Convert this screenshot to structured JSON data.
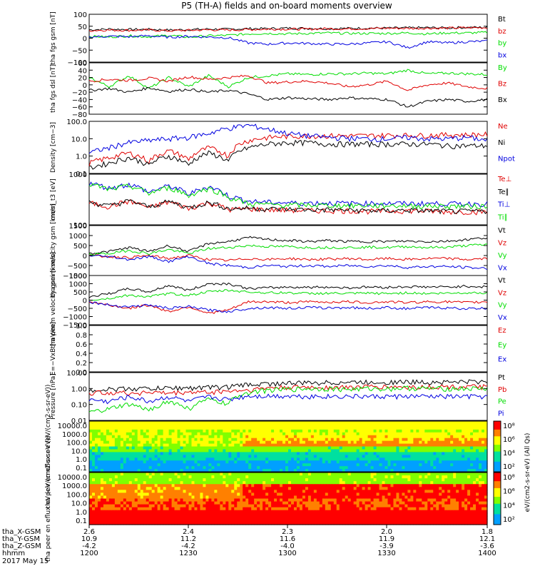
{
  "title": "P5 (TH-A) fields and on-board moments overview",
  "colors": {
    "black": "#000000",
    "red": "#e00000",
    "green": "#00dd00",
    "blue": "#0000e0",
    "axis": "#000000"
  },
  "xaxis": {
    "rows": [
      {
        "label": "tha_X-GSM",
        "values": [
          "2.6",
          "2.4",
          "2.3",
          "2.0",
          "1.8"
        ]
      },
      {
        "label": "tha_Y-GSM",
        "values": [
          "10.9",
          "11.2",
          "11.6",
          "11.9",
          "12.1"
        ]
      },
      {
        "label": "tha_Z-GSM",
        "values": [
          "-4.2",
          "-4.2",
          "-4.0",
          "-3.9",
          "-3.6"
        ]
      },
      {
        "label": "hhmm",
        "values": [
          "1200",
          "1230",
          "1300",
          "1330",
          "1400"
        ]
      }
    ],
    "date": "2017 May 15"
  },
  "chart_data": [
    {
      "type": "line",
      "id": "fgs_gsm",
      "ylabel": "tha fgs gsm [nT]",
      "ylim": [
        -100,
        100
      ],
      "yticks": [
        "100",
        "50",
        "0",
        "−50",
        "−100"
      ],
      "series": [
        {
          "name": "Bt",
          "color": "#000000",
          "values": [
            35,
            38,
            36,
            37,
            34,
            36,
            38,
            37,
            40,
            40,
            42,
            41,
            40,
            41,
            42,
            42,
            43,
            44,
            43,
            45,
            45
          ]
        },
        {
          "name": "bz",
          "color": "#e00000",
          "values": [
            32,
            34,
            33,
            34,
            31,
            33,
            35,
            34,
            36,
            38,
            38,
            38,
            40,
            39,
            40,
            42,
            41,
            42,
            42,
            44,
            44
          ]
        },
        {
          "name": "by",
          "color": "#00dd00",
          "values": [
            8,
            5,
            10,
            6,
            12,
            4,
            10,
            12,
            18,
            20,
            18,
            20,
            22,
            20,
            20,
            20,
            22,
            18,
            22,
            22,
            24
          ]
        },
        {
          "name": "bx",
          "color": "#0000e0",
          "values": [
            5,
            8,
            6,
            10,
            4,
            8,
            5,
            2,
            -20,
            -25,
            -20,
            -22,
            -25,
            -25,
            -20,
            -15,
            -40,
            -15,
            -20,
            -15,
            -12
          ]
        }
      ]
    },
    {
      "type": "line",
      "id": "fgs_dsl",
      "ylabel": "tha fgs dsl [nT]",
      "ylim": [
        -80,
        60
      ],
      "yticks": [
        "60",
        "40",
        "20",
        "0",
        "−20",
        "−40",
        "−60",
        "−80"
      ],
      "series": [
        {
          "name": "By",
          "color": "#00dd00",
          "values": [
            20,
            -5,
            25,
            -10,
            20,
            -5,
            25,
            -5,
            20,
            25,
            30,
            28,
            30,
            30,
            32,
            30,
            40,
            30,
            32,
            30,
            28
          ]
        },
        {
          "name": "Bz",
          "color": "#e00000",
          "values": [
            10,
            15,
            12,
            18,
            10,
            22,
            15,
            20,
            25,
            5,
            8,
            10,
            5,
            -5,
            0,
            10,
            -15,
            0,
            5,
            -5,
            -10
          ]
        },
        {
          "name": "Bx",
          "color": "#000000",
          "values": [
            -15,
            -10,
            -20,
            -8,
            -18,
            -12,
            -20,
            -15,
            -25,
            -40,
            -35,
            -38,
            -40,
            -35,
            -38,
            -40,
            -60,
            -45,
            -40,
            -45,
            -40
          ]
        }
      ]
    },
    {
      "type": "line",
      "id": "density",
      "ylabel": "Density [cm−3]",
      "log": true,
      "ylim": [
        0.1,
        100
      ],
      "yticks": [
        "100.0",
        "10.0",
        "1.0",
        "0.1"
      ],
      "series": [
        {
          "name": "Ne",
          "color": "#e00000",
          "values": [
            0.4,
            0.8,
            1.5,
            0.5,
            2,
            0.6,
            3,
            1,
            8,
            12,
            14,
            15,
            15,
            15,
            15,
            16,
            16,
            16,
            17,
            17,
            18
          ]
        },
        {
          "name": "Ni",
          "color": "#000000",
          "values": [
            0.2,
            0.4,
            0.8,
            0.3,
            1,
            0.3,
            1.5,
            0.5,
            3,
            5,
            6,
            6,
            5,
            5,
            5,
            5,
            5,
            5,
            4,
            4,
            4
          ]
        },
        {
          "name": "Npot",
          "color": "#0000e0",
          "values": [
            1.5,
            3,
            6,
            8,
            10,
            12,
            20,
            40,
            60,
            35,
            20,
            15,
            12,
            11,
            10,
            10,
            12,
            10,
            10,
            12,
            8
          ]
        }
      ]
    },
    {
      "type": "line",
      "id": "temperature",
      "ylabel": "mom_t3 [eV]",
      "log": true,
      "ylim": [
        10,
        10000
      ],
      "yticks": [
        "1000",
        "100"
      ],
      "series": [
        {
          "name": "Te⊥",
          "color": "#e00000",
          "values": [
            200,
            120,
            250,
            100,
            220,
            90,
            200,
            80,
            90,
            80,
            75,
            70,
            70,
            70,
            65,
            65,
            70,
            65,
            60,
            60,
            60
          ]
        },
        {
          "name": "Te∥",
          "color": "#000000",
          "values": [
            220,
            130,
            260,
            110,
            240,
            100,
            210,
            90,
            100,
            90,
            85,
            80,
            80,
            75,
            70,
            70,
            75,
            70,
            65,
            65,
            65
          ]
        },
        {
          "name": "Ti⊥",
          "color": "#0000e0",
          "values": [
            3000,
            1500,
            2500,
            800,
            2000,
            600,
            1800,
            500,
            250,
            220,
            200,
            200,
            200,
            190,
            190,
            190,
            185,
            185,
            180,
            180,
            180
          ]
        },
        {
          "name": "Ti∥",
          "color": "#00dd00",
          "values": [
            2500,
            1200,
            2000,
            700,
            1600,
            500,
            1400,
            400,
            180,
            160,
            150,
            150,
            145,
            140,
            140,
            140,
            135,
            135,
            130,
            130,
            130
          ]
        }
      ]
    },
    {
      "type": "line",
      "id": "peim_velocity",
      "ylabel": "tha peim velocity gsm [km/s]",
      "ylim": [
        -1000,
        1500
      ],
      "yticks": [
        "1500",
        "1000",
        "500",
        "0",
        "−500",
        "−1000"
      ],
      "series": [
        {
          "name": "Vt",
          "color": "#000000",
          "values": [
            100,
            200,
            400,
            200,
            500,
            200,
            600,
            700,
            900,
            800,
            750,
            700,
            750,
            700,
            700,
            700,
            720,
            700,
            720,
            800,
            900
          ]
        },
        {
          "name": "Vz",
          "color": "#e00000",
          "values": [
            0,
            -50,
            -100,
            0,
            -150,
            0,
            -200,
            -250,
            -150,
            -200,
            -150,
            -200,
            -180,
            -150,
            -200,
            -150,
            -200,
            -150,
            -150,
            -200,
            -150
          ]
        },
        {
          "name": "Vy",
          "color": "#00dd00",
          "values": [
            50,
            100,
            250,
            100,
            300,
            100,
            350,
            400,
            500,
            450,
            450,
            400,
            400,
            400,
            420,
            400,
            450,
            400,
            420,
            500,
            550
          ]
        },
        {
          "name": "Vx",
          "color": "#0000e0",
          "values": [
            0,
            -50,
            -200,
            -50,
            -300,
            -50,
            -400,
            -500,
            -600,
            -500,
            -550,
            -500,
            -550,
            -500,
            -550,
            -500,
            -600,
            -550,
            -550,
            -600,
            -650
          ]
        }
      ]
    },
    {
      "type": "line",
      "id": "peem_velocity",
      "ylabel": "tha peem velocity gsm [km/s]",
      "ylim": [
        -1500,
        1500
      ],
      "yticks": [
        "1500",
        "1000",
        "500",
        "0",
        "−500",
        "−1000",
        "−1500"
      ],
      "series": [
        {
          "name": "Vt",
          "color": "#000000",
          "values": [
            200,
            400,
            700,
            500,
            900,
            600,
            1000,
            1000,
            700,
            750,
            800,
            780,
            800,
            750,
            800,
            780,
            820,
            800,
            800,
            850,
            800
          ]
        },
        {
          "name": "Vz",
          "color": "#e00000",
          "values": [
            -100,
            -300,
            -500,
            -300,
            -700,
            -400,
            -800,
            -600,
            -100,
            -100,
            -150,
            -100,
            -120,
            -100,
            -150,
            -100,
            -150,
            -100,
            -100,
            -150,
            -100
          ]
        },
        {
          "name": "Vy",
          "color": "#00dd00",
          "values": [
            0,
            100,
            300,
            200,
            400,
            300,
            500,
            600,
            500,
            450,
            450,
            400,
            420,
            400,
            420,
            400,
            450,
            400,
            420,
            450,
            450
          ]
        },
        {
          "name": "Vx",
          "color": "#0000e0",
          "values": [
            -100,
            -300,
            -400,
            -300,
            -500,
            -400,
            -600,
            -700,
            -500,
            -450,
            -500,
            -450,
            -480,
            -450,
            -500,
            -450,
            -520,
            -450,
            -480,
            -520,
            -500
          ]
        }
      ]
    },
    {
      "type": "line",
      "id": "efield",
      "ylabel": "E=−VxB [mV/m]",
      "ylim": [
        0,
        1
      ],
      "yticks": [
        "1.0",
        "0.8",
        "0.6",
        "0.4",
        "0.2",
        "0.0"
      ],
      "series": [
        {
          "name": "Ez",
          "color": "#e00000",
          "values": []
        },
        {
          "name": "Ey",
          "color": "#00dd00",
          "values": []
        },
        {
          "name": "Ex",
          "color": "#0000e0",
          "values": []
        }
      ]
    },
    {
      "type": "line",
      "id": "pressure",
      "ylabel": "Pressure [nPa]",
      "log": true,
      "ylim": [
        0.01,
        10
      ],
      "yticks": [
        "10.00",
        "1.00",
        "0.10",
        "0.01"
      ],
      "series": [
        {
          "name": "Pt",
          "color": "#000000",
          "values": [
            0.8,
            0.9,
            1.0,
            1.0,
            1.1,
            1.1,
            1.2,
            1.3,
            1.8,
            2.0,
            2.2,
            2.3,
            2.4,
            2.5,
            2.5,
            2.6,
            2.6,
            2.6,
            2.6,
            2.7,
            2.7
          ]
        },
        {
          "name": "Pb",
          "color": "#e00000",
          "values": [
            0.5,
            0.6,
            0.5,
            0.6,
            0.5,
            0.6,
            0.6,
            0.7,
            0.8,
            1.1,
            1.2,
            1.2,
            1.2,
            1.2,
            1.3,
            1.3,
            1.2,
            1.3,
            1.3,
            1.3,
            1.3
          ]
        },
        {
          "name": "Pe",
          "color": "#00dd00",
          "values": [
            0.03,
            0.05,
            0.1,
            0.04,
            0.15,
            0.05,
            0.2,
            0.1,
            0.6,
            0.8,
            0.9,
            1.0,
            1.0,
            0.9,
            1.0,
            1.0,
            1.1,
            1.0,
            1.0,
            1.0,
            1.0
          ]
        },
        {
          "name": "Pi",
          "color": "#0000e0",
          "values": [
            0.2,
            0.15,
            0.3,
            0.15,
            0.3,
            0.15,
            0.3,
            0.2,
            0.35,
            0.35,
            0.35,
            0.33,
            0.33,
            0.33,
            0.32,
            0.32,
            0.33,
            0.32,
            0.32,
            0.32,
            0.32
          ]
        }
      ]
    },
    {
      "type": "heatmap",
      "id": "peir_spectrogram",
      "ylabel": "tha peir en eflux eV (eV/(cm2-s-sr-eV))",
      "yticks": [
        "10000.0",
        "1000.0",
        "100.0",
        "10.0",
        "1.0",
        "0.1"
      ],
      "colorbar_ticks": [
        "10⁸",
        "10⁶",
        "10⁴",
        "10²"
      ],
      "colorbar_label": "eV/(cm2-s-sr-eV) (All Qs)"
    },
    {
      "type": "heatmap",
      "id": "peer_spectrogram",
      "ylabel": "tha peer en eflux eV (eV/(cm2-s-sr-eV))",
      "yticks": [
        "10000.0",
        "1000.0",
        "100.0",
        "10.0",
        "1.0",
        "0.1"
      ],
      "colorbar_ticks": [
        "10⁸",
        "10⁶",
        "10⁴",
        "10²"
      ],
      "colorbar_label": "eV/(cm2-s-sr-eV) (All Qs)"
    }
  ]
}
